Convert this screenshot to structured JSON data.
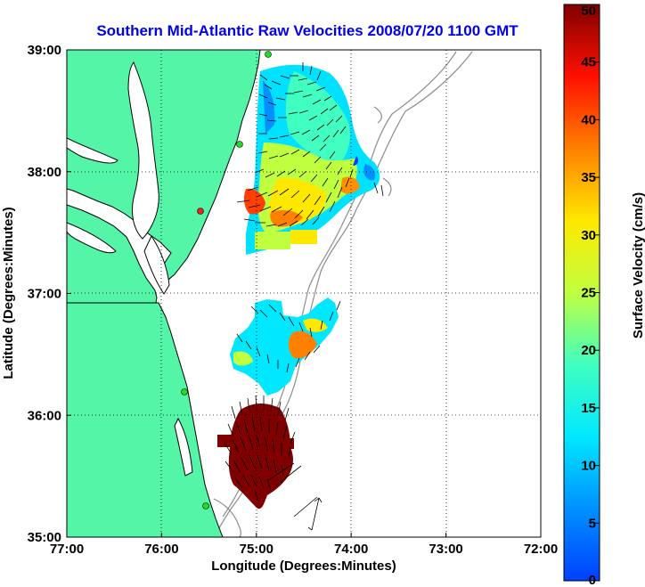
{
  "chart_data": {
    "type": "heatmap",
    "title": "Southern Mid-Atlantic Raw Velocities 2008/07/20 1100 GMT",
    "xlabel": "Longitude (Degrees:Minutes)",
    "ylabel": "Latitude (Degrees:Minutes)",
    "xlim": [
      -77,
      -72
    ],
    "ylim": [
      35,
      39
    ],
    "x_ticks": [
      {
        "value": -77,
        "label": "77:00"
      },
      {
        "value": -76,
        "label": "76:00"
      },
      {
        "value": -75,
        "label": "75:00"
      },
      {
        "value": -74,
        "label": "74:00"
      },
      {
        "value": -73,
        "label": "73:00"
      },
      {
        "value": -72,
        "label": "72:00"
      }
    ],
    "y_ticks": [
      {
        "value": 35,
        "label": "35:00"
      },
      {
        "value": 36,
        "label": "36:00"
      },
      {
        "value": 37,
        "label": "37:00"
      },
      {
        "value": 38,
        "label": "38:00"
      },
      {
        "value": 39,
        "label": "39:00"
      }
    ],
    "grid": true,
    "colorbar": {
      "label": "Surface Velocity (cm/s)",
      "range": [
        0,
        50
      ],
      "ticks": [
        0,
        5,
        10,
        15,
        20,
        25,
        30,
        35,
        40,
        45,
        50
      ],
      "colormap": "jet",
      "placement": "right"
    },
    "colors": {
      "land": "#55f5a8",
      "coastline": "#000000",
      "bathymetry": "#8c8c8c",
      "title": "#0000ee",
      "station_site": "#22dd22",
      "station_site_alt": "#ee2222"
    }
  }
}
